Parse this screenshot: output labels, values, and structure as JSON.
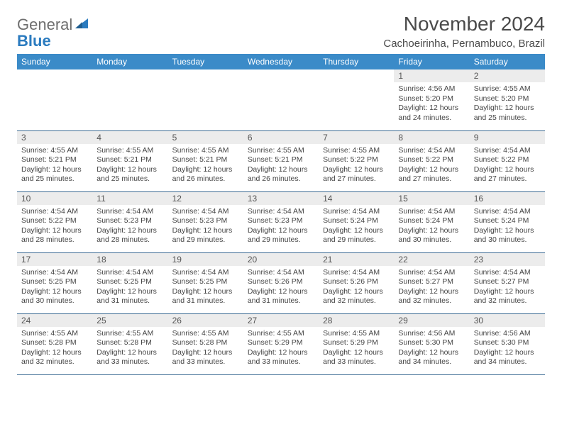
{
  "branding": {
    "word1": "General",
    "word2": "Blue",
    "word1_color": "#6e6e6e",
    "word2_color": "#2b7bbf",
    "sail_color": "#2b7bbf"
  },
  "header": {
    "title": "November 2024",
    "location": "Cachoeirinha, Pernambuco, Brazil"
  },
  "styling": {
    "header_bg": "#3b8bc8",
    "header_text": "#ffffff",
    "daynum_bg": "#ececec",
    "border_color": "#3b6a93",
    "body_text": "#444444",
    "title_color": "#4a4a4a"
  },
  "weekdays": [
    "Sunday",
    "Monday",
    "Tuesday",
    "Wednesday",
    "Thursday",
    "Friday",
    "Saturday"
  ],
  "weeks": [
    [
      {
        "n": "",
        "sr": "",
        "ss": "",
        "dl": ""
      },
      {
        "n": "",
        "sr": "",
        "ss": "",
        "dl": ""
      },
      {
        "n": "",
        "sr": "",
        "ss": "",
        "dl": ""
      },
      {
        "n": "",
        "sr": "",
        "ss": "",
        "dl": ""
      },
      {
        "n": "",
        "sr": "",
        "ss": "",
        "dl": ""
      },
      {
        "n": "1",
        "sr": "Sunrise: 4:56 AM",
        "ss": "Sunset: 5:20 PM",
        "dl": "Daylight: 12 hours and 24 minutes."
      },
      {
        "n": "2",
        "sr": "Sunrise: 4:55 AM",
        "ss": "Sunset: 5:20 PM",
        "dl": "Daylight: 12 hours and 25 minutes."
      }
    ],
    [
      {
        "n": "3",
        "sr": "Sunrise: 4:55 AM",
        "ss": "Sunset: 5:21 PM",
        "dl": "Daylight: 12 hours and 25 minutes."
      },
      {
        "n": "4",
        "sr": "Sunrise: 4:55 AM",
        "ss": "Sunset: 5:21 PM",
        "dl": "Daylight: 12 hours and 25 minutes."
      },
      {
        "n": "5",
        "sr": "Sunrise: 4:55 AM",
        "ss": "Sunset: 5:21 PM",
        "dl": "Daylight: 12 hours and 26 minutes."
      },
      {
        "n": "6",
        "sr": "Sunrise: 4:55 AM",
        "ss": "Sunset: 5:21 PM",
        "dl": "Daylight: 12 hours and 26 minutes."
      },
      {
        "n": "7",
        "sr": "Sunrise: 4:55 AM",
        "ss": "Sunset: 5:22 PM",
        "dl": "Daylight: 12 hours and 27 minutes."
      },
      {
        "n": "8",
        "sr": "Sunrise: 4:54 AM",
        "ss": "Sunset: 5:22 PM",
        "dl": "Daylight: 12 hours and 27 minutes."
      },
      {
        "n": "9",
        "sr": "Sunrise: 4:54 AM",
        "ss": "Sunset: 5:22 PM",
        "dl": "Daylight: 12 hours and 27 minutes."
      }
    ],
    [
      {
        "n": "10",
        "sr": "Sunrise: 4:54 AM",
        "ss": "Sunset: 5:22 PM",
        "dl": "Daylight: 12 hours and 28 minutes."
      },
      {
        "n": "11",
        "sr": "Sunrise: 4:54 AM",
        "ss": "Sunset: 5:23 PM",
        "dl": "Daylight: 12 hours and 28 minutes."
      },
      {
        "n": "12",
        "sr": "Sunrise: 4:54 AM",
        "ss": "Sunset: 5:23 PM",
        "dl": "Daylight: 12 hours and 29 minutes."
      },
      {
        "n": "13",
        "sr": "Sunrise: 4:54 AM",
        "ss": "Sunset: 5:23 PM",
        "dl": "Daylight: 12 hours and 29 minutes."
      },
      {
        "n": "14",
        "sr": "Sunrise: 4:54 AM",
        "ss": "Sunset: 5:24 PM",
        "dl": "Daylight: 12 hours and 29 minutes."
      },
      {
        "n": "15",
        "sr": "Sunrise: 4:54 AM",
        "ss": "Sunset: 5:24 PM",
        "dl": "Daylight: 12 hours and 30 minutes."
      },
      {
        "n": "16",
        "sr": "Sunrise: 4:54 AM",
        "ss": "Sunset: 5:24 PM",
        "dl": "Daylight: 12 hours and 30 minutes."
      }
    ],
    [
      {
        "n": "17",
        "sr": "Sunrise: 4:54 AM",
        "ss": "Sunset: 5:25 PM",
        "dl": "Daylight: 12 hours and 30 minutes."
      },
      {
        "n": "18",
        "sr": "Sunrise: 4:54 AM",
        "ss": "Sunset: 5:25 PM",
        "dl": "Daylight: 12 hours and 31 minutes."
      },
      {
        "n": "19",
        "sr": "Sunrise: 4:54 AM",
        "ss": "Sunset: 5:25 PM",
        "dl": "Daylight: 12 hours and 31 minutes."
      },
      {
        "n": "20",
        "sr": "Sunrise: 4:54 AM",
        "ss": "Sunset: 5:26 PM",
        "dl": "Daylight: 12 hours and 31 minutes."
      },
      {
        "n": "21",
        "sr": "Sunrise: 4:54 AM",
        "ss": "Sunset: 5:26 PM",
        "dl": "Daylight: 12 hours and 32 minutes."
      },
      {
        "n": "22",
        "sr": "Sunrise: 4:54 AM",
        "ss": "Sunset: 5:27 PM",
        "dl": "Daylight: 12 hours and 32 minutes."
      },
      {
        "n": "23",
        "sr": "Sunrise: 4:54 AM",
        "ss": "Sunset: 5:27 PM",
        "dl": "Daylight: 12 hours and 32 minutes."
      }
    ],
    [
      {
        "n": "24",
        "sr": "Sunrise: 4:55 AM",
        "ss": "Sunset: 5:28 PM",
        "dl": "Daylight: 12 hours and 32 minutes."
      },
      {
        "n": "25",
        "sr": "Sunrise: 4:55 AM",
        "ss": "Sunset: 5:28 PM",
        "dl": "Daylight: 12 hours and 33 minutes."
      },
      {
        "n": "26",
        "sr": "Sunrise: 4:55 AM",
        "ss": "Sunset: 5:28 PM",
        "dl": "Daylight: 12 hours and 33 minutes."
      },
      {
        "n": "27",
        "sr": "Sunrise: 4:55 AM",
        "ss": "Sunset: 5:29 PM",
        "dl": "Daylight: 12 hours and 33 minutes."
      },
      {
        "n": "28",
        "sr": "Sunrise: 4:55 AM",
        "ss": "Sunset: 5:29 PM",
        "dl": "Daylight: 12 hours and 33 minutes."
      },
      {
        "n": "29",
        "sr": "Sunrise: 4:56 AM",
        "ss": "Sunset: 5:30 PM",
        "dl": "Daylight: 12 hours and 34 minutes."
      },
      {
        "n": "30",
        "sr": "Sunrise: 4:56 AM",
        "ss": "Sunset: 5:30 PM",
        "dl": "Daylight: 12 hours and 34 minutes."
      }
    ]
  ]
}
